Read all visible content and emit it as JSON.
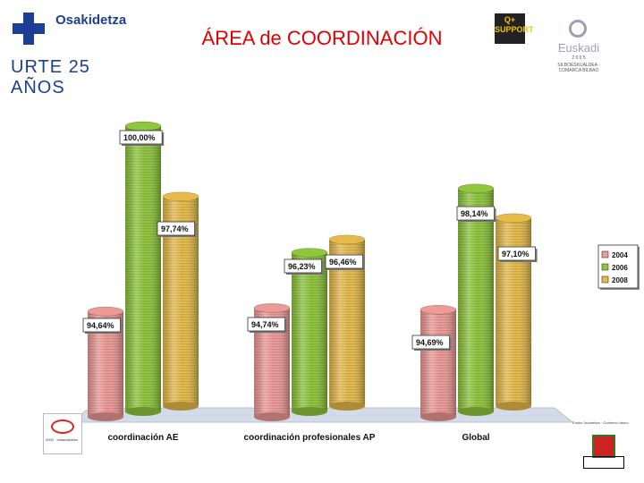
{
  "header": {
    "org_name": "Osakidetza",
    "anniversary": "URTE 25 AÑOS",
    "title": "ÁREA de COORDINACIÓN",
    "badge_text": "Q+ SUPPORT",
    "award_name": "Euskadi",
    "award_year": "2 0 0 5",
    "award_sub": "SILBOESKUALDEA · COMARCA BILBAO"
  },
  "footer": {
    "logo_left_text": "2000 · oihanzaldeko",
    "logo_right_text": "Eusko Jaurlaritza · Gobierno Vasco"
  },
  "chart_data": {
    "type": "bar",
    "categories": [
      "coordinación AE",
      "coordinación profesionales AP",
      "Global"
    ],
    "series": [
      {
        "name": "2004",
        "values": [
          94.64,
          94.74,
          94.69
        ],
        "labels": [
          "94,64%",
          "94,74%",
          "94,69%"
        ],
        "color": "#ee9a96"
      },
      {
        "name": "2006",
        "values": [
          100.0,
          96.23,
          98.14
        ],
        "labels": [
          "100,00%",
          "96,23%",
          "98,14%"
        ],
        "color": "#8fc63c"
      },
      {
        "name": "2008",
        "values": [
          97.74,
          96.46,
          97.1
        ],
        "labels": [
          "97,74%",
          "96,46%",
          "97,10%"
        ],
        "color": "#e6bb4a"
      }
    ],
    "legend_position": "right",
    "grid": false,
    "ylim": [
      91.5,
      101.2
    ]
  }
}
